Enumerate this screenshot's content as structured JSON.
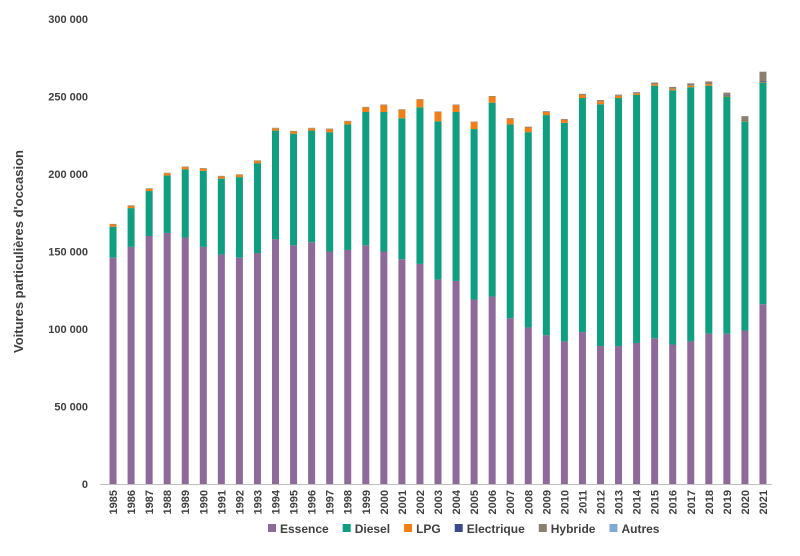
{
  "chart_data": {
    "type": "bar",
    "stacked": true,
    "ylabel": "Voitures particulières d'occasion",
    "ylim": [
      0,
      300000
    ],
    "yticks": [
      0,
      50000,
      100000,
      150000,
      200000,
      250000,
      300000
    ],
    "ytick_labels": [
      "0",
      "50 000",
      "100 000",
      "150 000",
      "200 000",
      "250 000",
      "300 000"
    ],
    "grid": false,
    "legend_position": "bottom",
    "categories": [
      "1985",
      "1986",
      "1987",
      "1988",
      "1989",
      "1990",
      "1991",
      "1992",
      "1993",
      "1994",
      "1995",
      "1996",
      "1997",
      "1998",
      "1999",
      "2000",
      "2001",
      "2002",
      "2003",
      "2004",
      "2005",
      "2006",
      "2007",
      "2008",
      "2009",
      "2010",
      "2011",
      "2012",
      "2013",
      "2014",
      "2015",
      "2016",
      "2017",
      "2018",
      "2019",
      "2020",
      "2021"
    ],
    "series": [
      {
        "name": "Essence",
        "color": "#8e6a9a",
        "values": [
          146000,
          153000,
          160000,
          162000,
          159000,
          153000,
          148000,
          146000,
          149000,
          158000,
          154000,
          156000,
          150000,
          151000,
          154000,
          150000,
          145000,
          142000,
          132000,
          131000,
          119000,
          121000,
          107000,
          101000,
          96000,
          92000,
          98000,
          89000,
          89000,
          91000,
          94000,
          90000,
          92000,
          97000,
          97000,
          99000,
          116000
        ]
      },
      {
        "name": "Diesel",
        "color": "#0f9e7f",
        "values": [
          20000,
          25000,
          29000,
          37000,
          44000,
          49000,
          49000,
          52000,
          58000,
          70000,
          72000,
          72000,
          77000,
          81000,
          86000,
          90000,
          91000,
          101000,
          102000,
          109000,
          110000,
          125000,
          125000,
          126000,
          142000,
          141000,
          151000,
          156000,
          160000,
          160000,
          163000,
          164000,
          164000,
          160000,
          153000,
          135000,
          143000
        ]
      },
      {
        "name": "LPG",
        "color": "#f07f1a",
        "values": [
          1500,
          1500,
          1500,
          1500,
          1500,
          1500,
          1500,
          1500,
          1500,
          1500,
          1500,
          1500,
          2000,
          2000,
          3000,
          4500,
          5500,
          5000,
          6000,
          4500,
          4500,
          4000,
          3500,
          3000,
          2000,
          2000,
          2000,
          2000,
          1500,
          1000,
          1000,
          1000,
          1000,
          1000,
          500,
          500,
          500
        ]
      },
      {
        "name": "Electrique",
        "color": "#3b4a8e",
        "values": [
          0,
          0,
          0,
          0,
          0,
          0,
          0,
          0,
          0,
          0,
          0,
          0,
          0,
          0,
          0,
          0,
          0,
          0,
          0,
          0,
          0,
          0,
          0,
          0,
          0,
          0,
          0,
          0,
          0,
          0,
          0,
          0,
          0,
          0,
          200,
          300,
          500
        ]
      },
      {
        "name": "Hybride",
        "color": "#8a7f70",
        "values": [
          300,
          300,
          300,
          300,
          300,
          300,
          300,
          300,
          300,
          300,
          300,
          300,
          300,
          300,
          300,
          300,
          300,
          300,
          300,
          300,
          300,
          300,
          500,
          500,
          500,
          500,
          700,
          700,
          700,
          800,
          1000,
          1200,
          1500,
          1700,
          1800,
          2500,
          6000
        ]
      },
      {
        "name": "Autres",
        "color": "#7fa9d6",
        "values": [
          0,
          0,
          0,
          0,
          0,
          0,
          0,
          0,
          0,
          0,
          0,
          0,
          0,
          0,
          0,
          0,
          0,
          0,
          0,
          0,
          0,
          0,
          0,
          0,
          0,
          0,
          0,
          0,
          0,
          0,
          0,
          0,
          0,
          0,
          0,
          0,
          0
        ]
      }
    ]
  }
}
